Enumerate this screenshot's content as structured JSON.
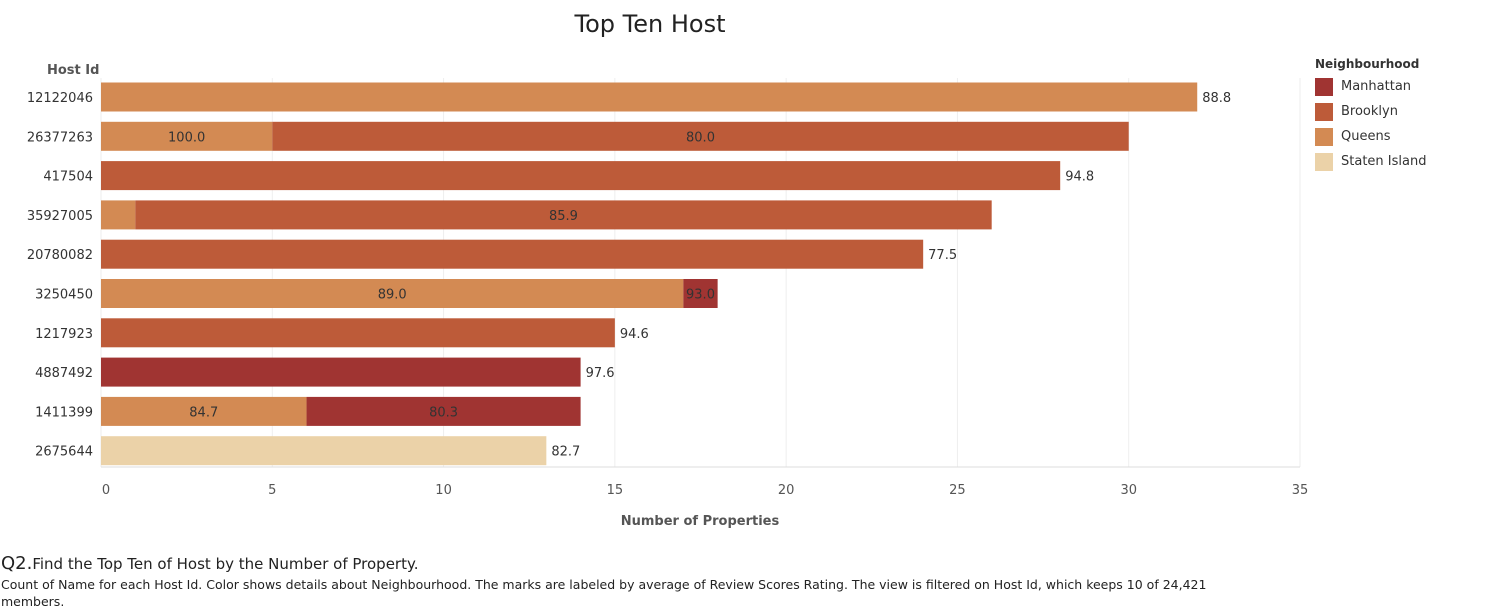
{
  "chart_data": {
    "type": "bar",
    "orientation": "horizontal",
    "stacked": true,
    "title": "Top Ten Host",
    "xlabel": "Number of Properties",
    "ylabel": "Host Id",
    "xlim": [
      0,
      35
    ],
    "xticks": [
      0,
      5,
      10,
      15,
      20,
      25,
      30,
      35
    ],
    "grid": true,
    "legend_position": "right",
    "legend_title": "Neighbourhood",
    "legend": [
      {
        "name": "Manhattan",
        "color": "#a03432"
      },
      {
        "name": "Brooklyn",
        "color": "#bd5b39"
      },
      {
        "name": "Queens",
        "color": "#d38a53"
      },
      {
        "name": "Staten Island",
        "color": "#ebd2a8"
      }
    ],
    "categories": [
      "12122046",
      "26377263",
      "417504",
      "35927005",
      "20780082",
      "3250450",
      "1217923",
      "4887492",
      "1411399",
      "2675644"
    ],
    "rows": [
      {
        "host": "12122046",
        "segments": [
          {
            "neighbourhood": "Queens",
            "value": 32,
            "label": "88.8"
          }
        ]
      },
      {
        "host": "26377263",
        "segments": [
          {
            "neighbourhood": "Queens",
            "value": 5,
            "label": "100.0"
          },
          {
            "neighbourhood": "Brooklyn",
            "value": 25,
            "label": "80.0"
          }
        ]
      },
      {
        "host": "417504",
        "segments": [
          {
            "neighbourhood": "Brooklyn",
            "value": 28,
            "label": "94.8"
          }
        ]
      },
      {
        "host": "35927005",
        "segments": [
          {
            "neighbourhood": "Queens",
            "value": 1,
            "label": ""
          },
          {
            "neighbourhood": "Brooklyn",
            "value": 25,
            "label": "85.9"
          }
        ]
      },
      {
        "host": "20780082",
        "segments": [
          {
            "neighbourhood": "Brooklyn",
            "value": 24,
            "label": "77.5"
          }
        ]
      },
      {
        "host": "3250450",
        "segments": [
          {
            "neighbourhood": "Queens",
            "value": 17,
            "label": "89.0"
          },
          {
            "neighbourhood": "Manhattan",
            "value": 1,
            "label": "93.0"
          }
        ]
      },
      {
        "host": "1217923",
        "segments": [
          {
            "neighbourhood": "Brooklyn",
            "value": 15,
            "label": "94.6"
          }
        ]
      },
      {
        "host": "4887492",
        "segments": [
          {
            "neighbourhood": "Manhattan",
            "value": 14,
            "label": "97.6"
          }
        ]
      },
      {
        "host": "1411399",
        "segments": [
          {
            "neighbourhood": "Queens",
            "value": 6,
            "label": "84.7"
          },
          {
            "neighbourhood": "Manhattan",
            "value": 8,
            "label": "80.3"
          }
        ]
      },
      {
        "host": "2675644",
        "segments": [
          {
            "neighbourhood": "Staten Island",
            "value": 13,
            "label": "82.7"
          }
        ]
      }
    ]
  },
  "caption": {
    "prefix": "Q2.",
    "title": "Find the Top Ten of Host by the Number of Property.",
    "description": "Count of Name for each Host Id.  Color shows details about Neighbourhood.  The marks are labeled by average of Review Scores Rating. The view is filtered on Host Id, which keeps 10 of 24,421 members."
  }
}
